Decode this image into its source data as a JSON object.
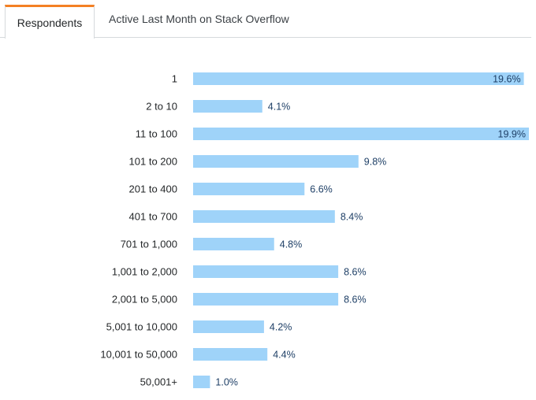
{
  "tabs": [
    {
      "label": "Respondents",
      "active": true
    },
    {
      "label": "Active Last Month on Stack Overflow",
      "active": false
    }
  ],
  "colors": {
    "bar": "#9fd3f9",
    "accent": "#f48024",
    "value_text": "#1e3f66"
  },
  "chart_data": {
    "type": "bar",
    "orientation": "horizontal",
    "title": "",
    "xlabel": "",
    "ylabel": "",
    "unit": "%",
    "xlim": [
      0,
      19.9
    ],
    "grid": false,
    "categories": [
      "1",
      "2 to 10",
      "11 to 100",
      "101 to 200",
      "201 to 400",
      "401 to 700",
      "701 to 1,000",
      "1,001 to 2,000",
      "2,001 to 5,000",
      "5,001 to 10,000",
      "10,001 to 50,000",
      "50,001+"
    ],
    "values": [
      19.6,
      4.1,
      19.9,
      9.8,
      6.6,
      8.4,
      4.8,
      8.6,
      8.6,
      4.2,
      4.4,
      1.0
    ],
    "value_labels": [
      "19.6%",
      "4.1%",
      "19.9%",
      "9.8%",
      "6.6%",
      "8.4%",
      "4.8%",
      "8.6%",
      "8.6%",
      "4.2%",
      "4.4%",
      "1.0%"
    ]
  }
}
